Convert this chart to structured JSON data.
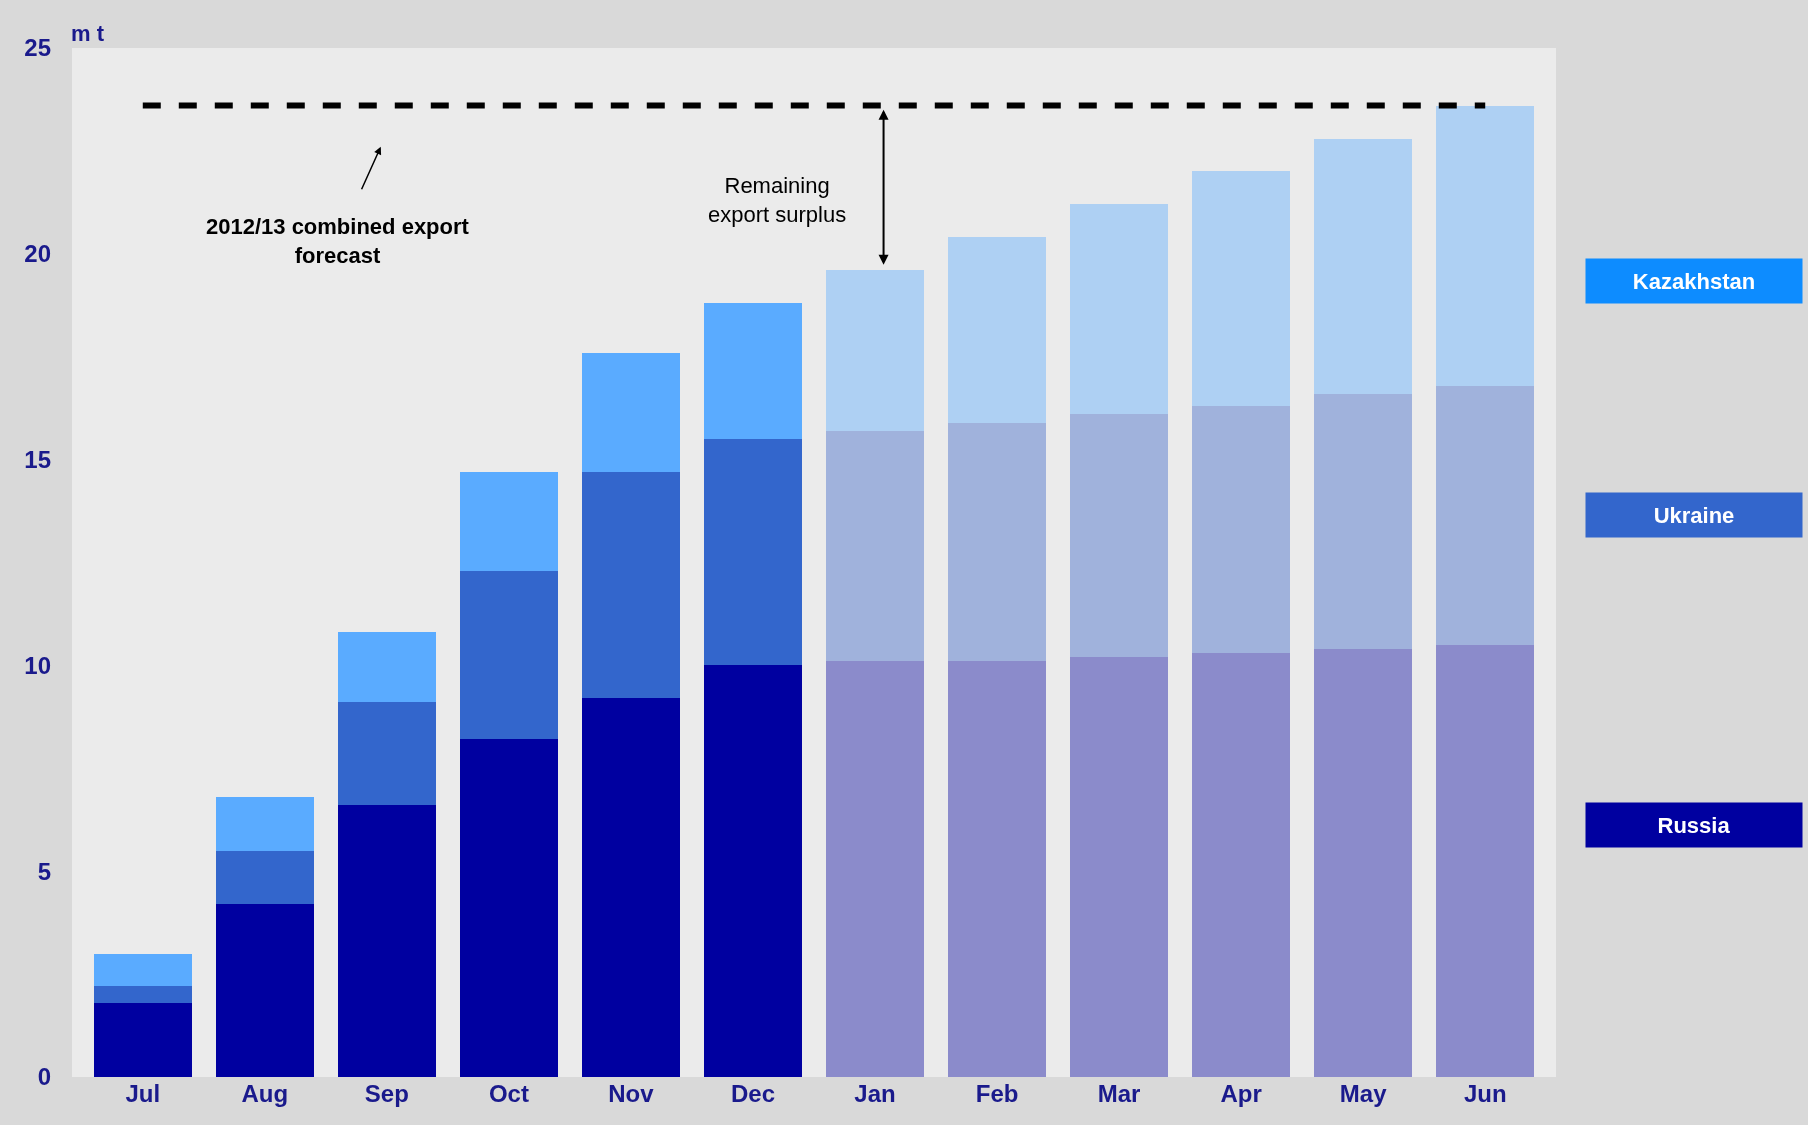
{
  "chart_data": {
    "type": "bar",
    "stacked": true,
    "ylabel": "m t",
    "categories": [
      "Jul",
      "Aug",
      "Sep",
      "Oct",
      "Nov",
      "Dec",
      "Jan",
      "Feb",
      "Mar",
      "Apr",
      "May",
      "Jun"
    ],
    "series": [
      {
        "name": "Russia",
        "color": "#0000a0",
        "colors": [
          "#0000a0",
          "#0000a0",
          "#0000a0",
          "#0000a0",
          "#0000a0",
          "#0000a0",
          "#8b8bcb",
          "#8b8bcb",
          "#8b8bcb",
          "#8b8bcb",
          "#8b8bcb",
          "#8b8bcb"
        ],
        "values": [
          1.8,
          4.2,
          6.6,
          8.2,
          9.2,
          10.0,
          10.1,
          10.1,
          10.2,
          10.3,
          10.4,
          10.5
        ]
      },
      {
        "name": "Ukraine",
        "color": "#3366cc",
        "colors": [
          "#3366cc",
          "#3366cc",
          "#3366cc",
          "#3366cc",
          "#3366cc",
          "#3366cc",
          "#a0b2dc",
          "#a0b2dc",
          "#a0b2dc",
          "#a0b2dc",
          "#a0b2dc",
          "#a0b2dc"
        ],
        "values": [
          0.4,
          1.3,
          2.5,
          4.1,
          5.5,
          5.5,
          5.6,
          5.8,
          5.9,
          6.0,
          6.2,
          6.3
        ]
      },
      {
        "name": "Kazakhstan",
        "color": "#0d8cff",
        "colors": [
          "#5aabff",
          "#5aabff",
          "#5aabff",
          "#5aabff",
          "#5aabff",
          "#5aabff",
          "#aed0f3",
          "#aed0f3",
          "#aed0f3",
          "#aed0f3",
          "#aed0f3",
          "#aed0f3"
        ],
        "values": [
          0.8,
          1.3,
          1.7,
          2.4,
          2.9,
          3.3,
          3.9,
          4.5,
          5.1,
          5.7,
          6.2,
          6.8
        ]
      }
    ],
    "ylim": [
      0,
      25
    ],
    "yticks": [
      0,
      5,
      10,
      15,
      20,
      25
    ],
    "grid": false,
    "legend": "right",
    "ref_lines": [
      {
        "axis": "y",
        "value": 23.6,
        "color": "#000000",
        "line_style": "dashed"
      }
    ],
    "annotations": [
      "2012/13 combined export forecast",
      "Remaining export surplus"
    ]
  }
}
